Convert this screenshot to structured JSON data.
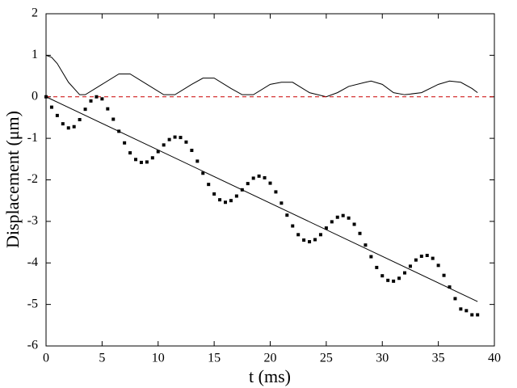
{
  "chart_data": {
    "type": "line",
    "x_label": "t (ms)",
    "y_label": "Displacement (μm)",
    "xlim": [
      0,
      40
    ],
    "xticks": [
      0,
      5,
      10,
      15,
      20,
      25,
      30,
      35,
      40
    ],
    "ylim": [
      -6,
      2
    ],
    "yticks": [
      -6,
      -5,
      -4,
      -3,
      -2,
      -1,
      0,
      1,
      2
    ],
    "series": [
      {
        "mode": "line",
        "color": "#000000",
        "x": [
          0,
          0.5,
          1,
          2,
          3,
          3.5,
          5,
          6.5,
          7.5,
          9,
          10.5,
          11.5,
          13,
          14,
          15,
          16.5,
          17.5,
          18.5,
          20,
          21,
          22,
          23.5,
          25,
          26,
          27,
          28.5,
          29,
          30,
          31,
          32,
          33.5,
          35,
          36,
          37,
          38,
          38.5
        ],
        "values": [
          1,
          0.95,
          0.8,
          0.35,
          0.05,
          0.05,
          0.3,
          0.55,
          0.55,
          0.3,
          0.05,
          0.05,
          0.3,
          0.45,
          0.45,
          0.2,
          0.05,
          0.05,
          0.3,
          0.35,
          0.35,
          0.1,
          0,
          0.1,
          0.25,
          0.35,
          0.38,
          0.3,
          0.1,
          0.05,
          0.1,
          0.3,
          0.38,
          0.35,
          0.2,
          0.1
        ]
      },
      {
        "mode": "line",
        "color": "#cc0000",
        "dash": true,
        "x": [
          0,
          40
        ],
        "values": [
          0,
          0
        ]
      },
      {
        "mode": "line",
        "color": "#000000",
        "x": [
          0,
          38.5
        ],
        "values": [
          0,
          -4.93
        ]
      },
      {
        "mode": "markers",
        "color": "#000000",
        "x": [
          0,
          0.5,
          1,
          1.5,
          2,
          2.5,
          3,
          3.5,
          4,
          4.5,
          5,
          5.5,
          6,
          6.5,
          7,
          7.5,
          8,
          8.5,
          9,
          9.5,
          10,
          10.5,
          11,
          11.5,
          12,
          12.5,
          13,
          13.5,
          14,
          14.5,
          15,
          15.5,
          16,
          16.5,
          17,
          17.5,
          18,
          18.5,
          19,
          19.5,
          20,
          20.5,
          21,
          21.5,
          22,
          22.5,
          23,
          23.5,
          24,
          24.5,
          25,
          25.5,
          26,
          26.5,
          27,
          27.5,
          28,
          28.5,
          29,
          29.5,
          30,
          30.5,
          31,
          31.5,
          32,
          32.5,
          33,
          33.5,
          34,
          34.5,
          35,
          35.5,
          36,
          36.5,
          37,
          37.5,
          38,
          38.5
        ],
        "values": [
          0,
          -0.25,
          -0.45,
          -0.65,
          -0.75,
          -0.72,
          -0.55,
          -0.3,
          -0.1,
          0,
          -0.05,
          -0.29,
          -0.54,
          -0.83,
          -1.11,
          -1.35,
          -1.51,
          -1.58,
          -1.57,
          -1.47,
          -1.32,
          -1.16,
          -1.03,
          -0.97,
          -0.98,
          -1.09,
          -1.29,
          -1.55,
          -1.84,
          -2.11,
          -2.34,
          -2.48,
          -2.54,
          -2.5,
          -2.39,
          -2.24,
          -2.09,
          -1.96,
          -1.91,
          -1.95,
          -2.08,
          -2.29,
          -2.56,
          -2.85,
          -3.11,
          -3.32,
          -3.45,
          -3.49,
          -3.44,
          -3.32,
          -3.16,
          -3.01,
          -2.9,
          -2.86,
          -2.92,
          -3.07,
          -3.29,
          -3.57,
          -3.85,
          -4.11,
          -4.31,
          -4.42,
          -4.44,
          -4.37,
          -4.24,
          -4.08,
          -3.93,
          -3.84,
          -3.82,
          -3.89,
          -4.06,
          -4.3,
          -4.58,
          -4.86,
          -5.11,
          -5.15,
          -5.25,
          -5.25
        ]
      }
    ]
  }
}
